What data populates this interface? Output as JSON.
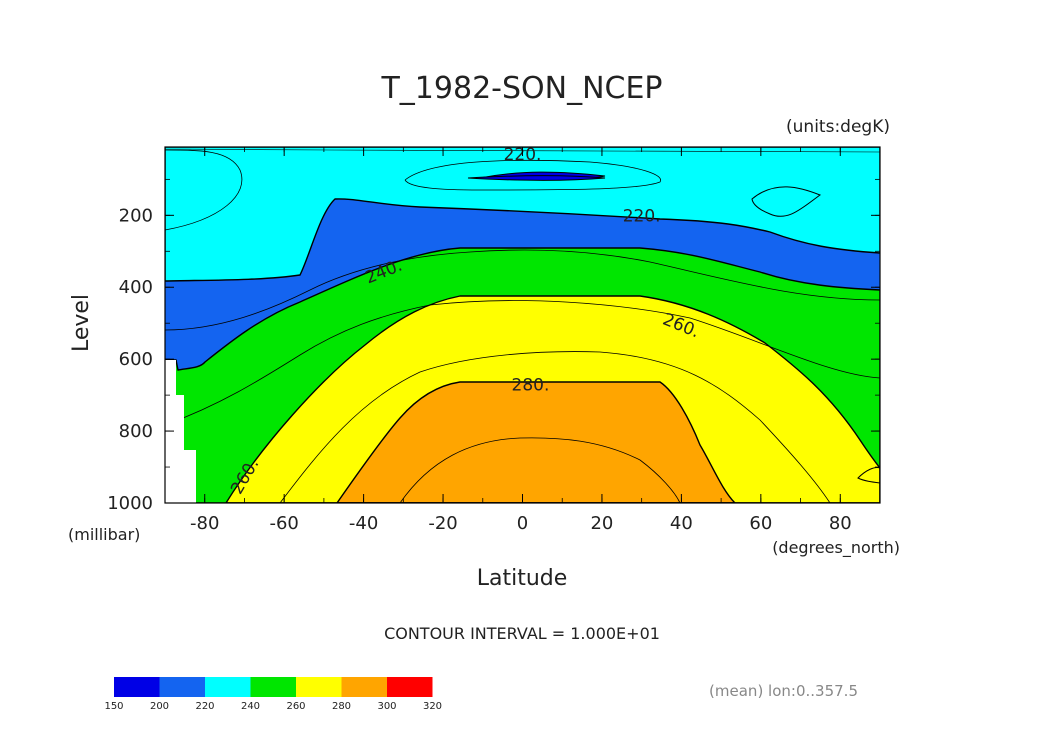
{
  "chart_data": {
    "type": "contour",
    "title": "T_1982-SON_NCEP",
    "units_label": "(units:degK)",
    "xlabel": "Latitude",
    "ylabel": "Level",
    "x_units_label": "(degrees_north)",
    "y_units_label": "(millibar)",
    "xlim": [
      -90,
      90
    ],
    "ylim": [
      1000,
      10
    ],
    "y_inverted": true,
    "x_ticks": [
      "-80",
      "-60",
      "-40",
      "-20",
      "0",
      "20",
      "40",
      "60",
      "80"
    ],
    "x_tick_values": [
      -80,
      -60,
      -40,
      -20,
      0,
      20,
      40,
      60,
      80
    ],
    "y_ticks": [
      "200",
      "400",
      "600",
      "800",
      "1000"
    ],
    "y_tick_values": [
      200,
      400,
      600,
      800,
      1000
    ],
    "contour_interval_text": "CONTOUR INTERVAL = 1.000E+01",
    "footnote": "(mean) lon:0..357.5",
    "contour_labels": [
      {
        "text": "220.",
        "x": 0,
        "y": 30
      },
      {
        "text": "220.",
        "x": 30,
        "y": 200
      },
      {
        "text": "240.",
        "x": -35,
        "y": 355
      },
      {
        "text": "260.",
        "x": 40,
        "y": 505
      },
      {
        "text": "280.",
        "x": 2,
        "y": 670
      },
      {
        "text": "260.",
        "x": -70,
        "y": 925
      }
    ],
    "legend": {
      "labels": [
        "150",
        "200",
        "220",
        "240",
        "260",
        "280",
        "300",
        "320"
      ],
      "colors": [
        "#0000e6",
        "#1464f0",
        "#00ffff",
        "#00e600",
        "#ffff00",
        "#ffa500",
        "#ff0000"
      ]
    },
    "band_colors": {
      "lt200": "#0000e6",
      "200_220": "#1464f0",
      "220_240": "#00ffff",
      "240_260": "#00e600",
      "260_280": "#ffff00",
      "280_300": "#ffa500"
    }
  }
}
